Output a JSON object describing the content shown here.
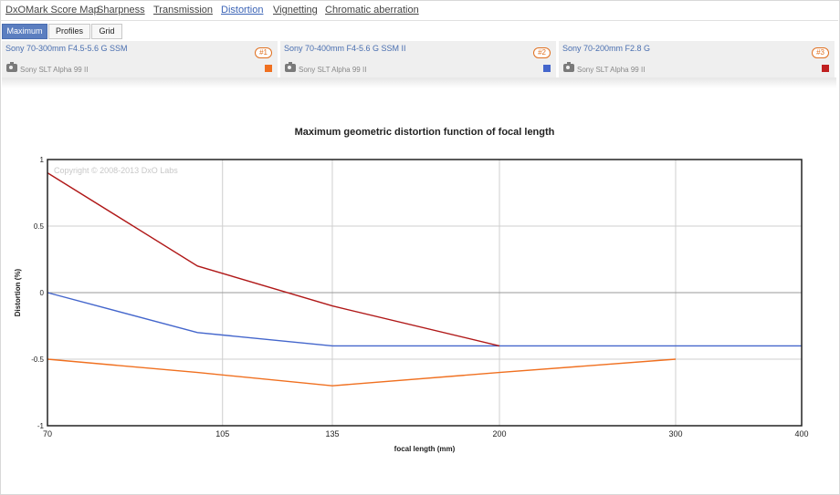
{
  "nav": {
    "items": [
      {
        "label": "DxOMark Score Map",
        "active": false
      },
      {
        "label": "Sharpness",
        "active": false
      },
      {
        "label": "Transmission",
        "active": false
      },
      {
        "label": "Distortion",
        "active": true
      },
      {
        "label": "Vignetting",
        "active": false
      },
      {
        "label": "Chromatic aberration",
        "active": false
      }
    ]
  },
  "subtabs": [
    {
      "label": "Maximum",
      "active": true
    },
    {
      "label": "Profiles",
      "active": false
    },
    {
      "label": "Grid",
      "active": false
    }
  ],
  "lenses": [
    {
      "name": "Sony 70-300mm F4.5-5.6 G SSM",
      "badge": "#1",
      "camera": "Sony SLT Alpha 99 II",
      "color": "#f07020"
    },
    {
      "name": "Sony 70-400mm F4-5.6 G SSM II",
      "badge": "#2",
      "camera": "Sony SLT Alpha 99 II",
      "color": "#4466cc"
    },
    {
      "name": "Sony 70-200mm F2.8 G",
      "badge": "#3",
      "camera": "Sony SLT Alpha 99 II",
      "color": "#cc2020"
    }
  ],
  "chart_data": {
    "type": "line",
    "title": "Maximum geometric distortion function of focal length",
    "xlabel": "focal length (mm)",
    "ylabel": "Distortion (%)",
    "watermark": "Copyright © 2008-2013 DxO Labs",
    "x_ticks": [
      "70",
      "105",
      "135",
      "200",
      "300",
      "400"
    ],
    "x_tick_values": [
      70,
      105,
      135,
      200,
      300,
      400
    ],
    "y_ticks": [
      "1",
      "0.5",
      "0",
      "-0.5",
      "-1"
    ],
    "y_tick_values": [
      1,
      0.5,
      0,
      -0.5,
      -1
    ],
    "xlim": [
      70,
      400
    ],
    "ylim": [
      -1,
      1
    ],
    "grid": true,
    "series": [
      {
        "name": "Sony 70-300mm F4.5-5.6 G SSM",
        "color": "#f07020",
        "x": [
          70,
          100,
          135,
          200,
          300
        ],
        "y": [
          -0.5,
          -0.6,
          -0.7,
          -0.6,
          -0.5
        ]
      },
      {
        "name": "Sony 70-400mm F4-5.6 G SSM II",
        "color": "#4466cc",
        "x": [
          70,
          100,
          135,
          200,
          400
        ],
        "y": [
          0,
          -0.3,
          -0.4,
          -0.4,
          -0.4
        ]
      },
      {
        "name": "Sony 70-200mm F2.8 G",
        "color": "#b01818",
        "x": [
          70,
          100,
          135,
          200
        ],
        "y": [
          0.9,
          0.2,
          -0.1,
          -0.4
        ]
      }
    ]
  }
}
